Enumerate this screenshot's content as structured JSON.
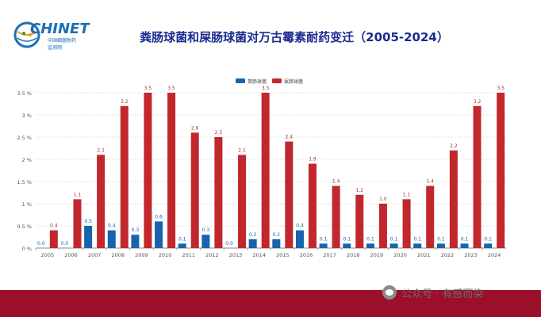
{
  "logo": {
    "brand": "CHINET",
    "sub_line1": "中国细菌耐药",
    "sub_line2": "监测网"
  },
  "colors": {
    "series1": "#1764ad",
    "series2": "#c1272d",
    "title": "#1b2c8f",
    "footer": "#9b0f2a"
  },
  "watermark": {
    "text": "公众号 · 有感而染",
    "icon": "wechat-icon"
  },
  "chart_data": {
    "type": "bar",
    "title": "粪肠球菌和屎肠球菌对万古霉素耐药变迁（2005-2024）",
    "categories": [
      "2005",
      "2006",
      "2007",
      "2008",
      "2009",
      "2010",
      "2011",
      "2012",
      "2013",
      "2014",
      "2015",
      "2016",
      "2017",
      "2018",
      "2019",
      "2020",
      "2021",
      "2022",
      "2023",
      "2024"
    ],
    "series": [
      {
        "name": "粪肠球菌",
        "values": [
          0.0,
          0.0,
          0.5,
          0.4,
          0.3,
          0.6,
          0.1,
          0.3,
          0.0,
          0.2,
          0.2,
          0.4,
          0.1,
          0.1,
          0.1,
          0.1,
          0.1,
          0.1,
          0.1,
          0.1
        ]
      },
      {
        "name": "屎肠球菌",
        "values": [
          0.4,
          1.1,
          2.1,
          3.2,
          3.5,
          3.5,
          2.6,
          2.5,
          2.1,
          3.5,
          2.4,
          1.9,
          1.4,
          1.2,
          1.0,
          1.1,
          1.4,
          2.2,
          3.2,
          3.5
        ]
      }
    ],
    "ylim": [
      0,
      3.5
    ],
    "yticks": [
      "0 %",
      "0.5 %",
      "1 %",
      "1.5 %",
      "2 %",
      "2.5 %",
      "3 %",
      "3.5 %"
    ],
    "grid": true,
    "legend_position": "top-center",
    "xlabel": "",
    "ylabel": ""
  }
}
